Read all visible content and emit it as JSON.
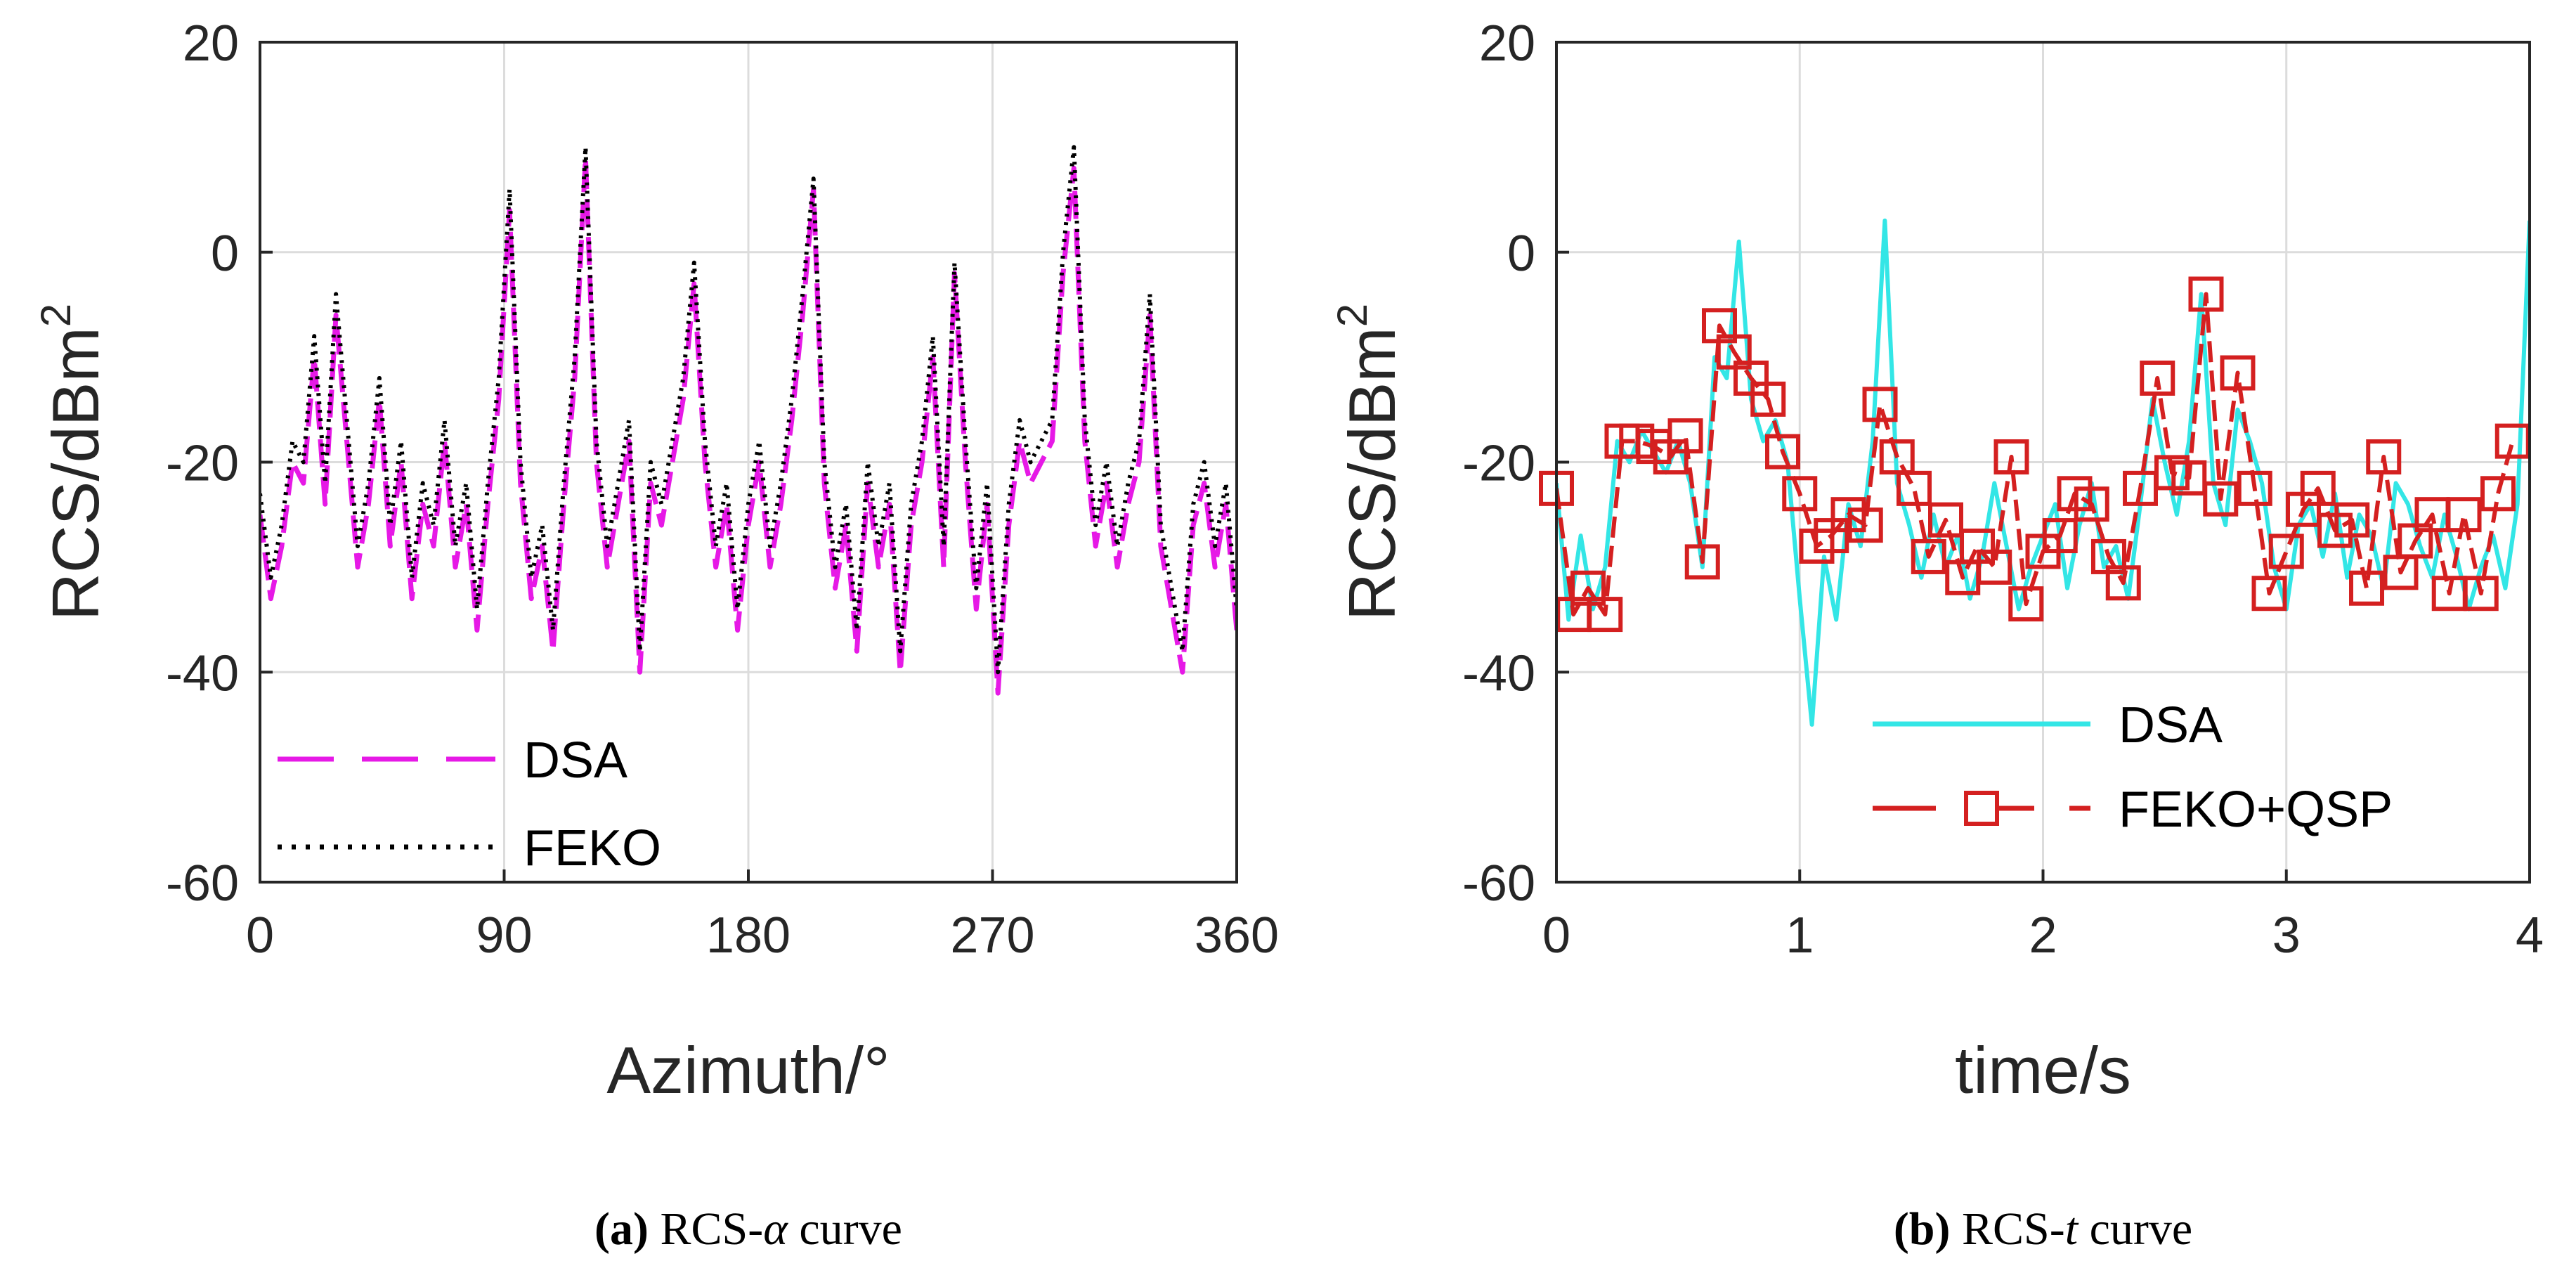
{
  "chart_data": [
    {
      "type": "line",
      "panel": "a",
      "ylabel": "RCS/dBm",
      "ylabel_superscript": "2",
      "xlabel": "Azimuth/°",
      "xlim": [
        0,
        360
      ],
      "ylim": [
        -60,
        20
      ],
      "xticks": [
        0,
        90,
        180,
        270,
        360
      ],
      "yticks": [
        -60,
        -40,
        -20,
        0,
        20
      ],
      "grid": true,
      "legend_position": "bottom-left",
      "caption_label": "(a)",
      "caption_text": " RCS-",
      "caption_symbol": "α",
      "caption_suffix": " curve",
      "series": [
        {
          "name": "DSA",
          "color": "#e619e6",
          "style": "dashed",
          "x": [
            0,
            4,
            8,
            12,
            16,
            20,
            24,
            28,
            32,
            36,
            40,
            44,
            48,
            52,
            56,
            60,
            64,
            68,
            72,
            76,
            80,
            84,
            88,
            92,
            96,
            100,
            104,
            108,
            112,
            116,
            120,
            124,
            128,
            132,
            136,
            140,
            144,
            148,
            152,
            156,
            160,
            164,
            168,
            172,
            176,
            180,
            184,
            188,
            192,
            196,
            200,
            204,
            208,
            212,
            216,
            220,
            224,
            228,
            232,
            236,
            240,
            244,
            248,
            252,
            256,
            260,
            264,
            268,
            272,
            276,
            280,
            284,
            288,
            292,
            296,
            300,
            304,
            308,
            312,
            316,
            320,
            324,
            328,
            332,
            336,
            340,
            344,
            348,
            352,
            356,
            360
          ],
          "y": [
            -25,
            -33,
            -28,
            -20,
            -22,
            -10,
            -24,
            -6,
            -18,
            -30,
            -24,
            -14,
            -28,
            -20,
            -33,
            -24,
            -28,
            -18,
            -30,
            -24,
            -36,
            -24,
            -14,
            4,
            -22,
            -33,
            -28,
            -38,
            -24,
            -12,
            9,
            -20,
            -30,
            -24,
            -18,
            -40,
            -22,
            -26,
            -20,
            -14,
            -3,
            -20,
            -30,
            -24,
            -36,
            -26,
            -20,
            -30,
            -24,
            -16,
            -6,
            6,
            -22,
            -32,
            -26,
            -38,
            -22,
            -30,
            -24,
            -40,
            -26,
            -20,
            -10,
            -30,
            -2,
            -20,
            -34,
            -24,
            -42,
            -26,
            -18,
            -22,
            -20,
            -18,
            -2,
            8,
            -18,
            -28,
            -22,
            -30,
            -24,
            -20,
            -6,
            -28,
            -34,
            -40,
            -26,
            -22,
            -30,
            -24,
            -36
          ]
        },
        {
          "name": "FEKO",
          "color": "#000000",
          "style": "dotted",
          "x": [
            0,
            4,
            8,
            12,
            16,
            20,
            24,
            28,
            32,
            36,
            40,
            44,
            48,
            52,
            56,
            60,
            64,
            68,
            72,
            76,
            80,
            84,
            88,
            92,
            96,
            100,
            104,
            108,
            112,
            116,
            120,
            124,
            128,
            132,
            136,
            140,
            144,
            148,
            152,
            156,
            160,
            164,
            168,
            172,
            176,
            180,
            184,
            188,
            192,
            196,
            200,
            204,
            208,
            212,
            216,
            220,
            224,
            228,
            232,
            236,
            240,
            244,
            248,
            252,
            256,
            260,
            264,
            268,
            272,
            276,
            280,
            284,
            288,
            292,
            296,
            300,
            304,
            308,
            312,
            316,
            320,
            324,
            328,
            332,
            336,
            340,
            344,
            348,
            352,
            356,
            360
          ],
          "y": [
            -23,
            -31,
            -26,
            -18,
            -20,
            -8,
            -22,
            -4,
            -16,
            -28,
            -22,
            -12,
            -26,
            -18,
            -31,
            -22,
            -26,
            -16,
            -28,
            -22,
            -34,
            -22,
            -12,
            6,
            -20,
            -31,
            -26,
            -36,
            -22,
            -10,
            10,
            -18,
            -28,
            -22,
            -16,
            -38,
            -20,
            -24,
            -18,
            -12,
            -1,
            -18,
            -28,
            -22,
            -34,
            -24,
            -18,
            -28,
            -22,
            -14,
            -4,
            7,
            -20,
            -30,
            -24,
            -36,
            -20,
            -28,
            -22,
            -38,
            -24,
            -18,
            -8,
            -28,
            -1,
            -18,
            -32,
            -22,
            -40,
            -24,
            -16,
            -20,
            -18,
            -16,
            0,
            10,
            -16,
            -26,
            -20,
            -28,
            -22,
            -18,
            -4,
            -26,
            -32,
            -38,
            -24,
            -20,
            -28,
            -22,
            -34
          ]
        }
      ]
    },
    {
      "type": "line",
      "panel": "b",
      "ylabel": "RCS/dBm",
      "ylabel_superscript": "2",
      "xlabel": "time/s",
      "xlim": [
        0,
        4
      ],
      "ylim": [
        -60,
        20
      ],
      "xticks": [
        0,
        1,
        2,
        3,
        4
      ],
      "yticks": [
        -60,
        -40,
        -20,
        0,
        20
      ],
      "grid": true,
      "legend_position": "bottom-right",
      "caption_label": "(b)",
      "caption_text": " RCS-",
      "caption_symbol": "t",
      "caption_suffix": " curve",
      "series": [
        {
          "name": "DSA",
          "color": "#33e6e6",
          "style": "solid",
          "x": [
            0,
            0.05,
            0.1,
            0.15,
            0.2,
            0.25,
            0.3,
            0.35,
            0.4,
            0.45,
            0.5,
            0.55,
            0.6,
            0.65,
            0.7,
            0.75,
            0.8,
            0.85,
            0.9,
            0.95,
            1.0,
            1.05,
            1.1,
            1.15,
            1.2,
            1.25,
            1.3,
            1.35,
            1.4,
            1.45,
            1.5,
            1.55,
            1.6,
            1.65,
            1.7,
            1.75,
            1.8,
            1.85,
            1.9,
            1.95,
            2.0,
            2.05,
            2.1,
            2.15,
            2.2,
            2.25,
            2.3,
            2.35,
            2.4,
            2.45,
            2.5,
            2.55,
            2.6,
            2.65,
            2.7,
            2.75,
            2.8,
            2.85,
            2.9,
            2.95,
            3.0,
            3.05,
            3.1,
            3.15,
            3.2,
            3.25,
            3.3,
            3.35,
            3.4,
            3.45,
            3.5,
            3.55,
            3.6,
            3.65,
            3.7,
            3.75,
            3.8,
            3.85,
            3.9,
            3.95,
            4.0
          ],
          "y": [
            -22,
            -35,
            -27,
            -34,
            -30,
            -18,
            -20,
            -17,
            -19,
            -21,
            -18,
            -22,
            -30,
            -10,
            -12,
            1,
            -14,
            -18,
            -16,
            -20,
            -33,
            -45,
            -29,
            -35,
            -24,
            -28,
            -18,
            3,
            -22,
            -26,
            -31,
            -25,
            -30,
            -27,
            -33,
            -29,
            -22,
            -28,
            -34,
            -30,
            -27,
            -24,
            -32,
            -26,
            -22,
            -30,
            -28,
            -33,
            -24,
            -14,
            -20,
            -25,
            -18,
            -4,
            -22,
            -26,
            -15,
            -18,
            -22,
            -30,
            -34,
            -26,
            -24,
            -29,
            -23,
            -31,
            -25,
            -27,
            -32,
            -22,
            -24,
            -28,
            -31,
            -25,
            -29,
            -34,
            -30,
            -27,
            -32,
            -24,
            3
          ]
        },
        {
          "name": "FEKO+QSP",
          "color": "#d42020",
          "style": "dashed-square",
          "x": [
            0,
            0.07,
            0.13,
            0.2,
            0.27,
            0.33,
            0.4,
            0.47,
            0.53,
            0.6,
            0.67,
            0.73,
            0.8,
            0.87,
            0.93,
            1.0,
            1.07,
            1.13,
            1.2,
            1.27,
            1.33,
            1.4,
            1.47,
            1.53,
            1.6,
            1.67,
            1.73,
            1.8,
            1.87,
            1.93,
            2.0,
            2.07,
            2.13,
            2.2,
            2.27,
            2.33,
            2.4,
            2.47,
            2.53,
            2.6,
            2.67,
            2.73,
            2.8,
            2.87,
            2.93,
            3.0,
            3.07,
            3.13,
            3.2,
            3.27,
            3.33,
            3.4,
            3.47,
            3.53,
            3.6,
            3.67,
            3.73,
            3.8,
            3.87,
            3.93
          ],
          "y": [
            -22.5,
            -34.5,
            -32,
            -34.5,
            -18,
            -18,
            -18.5,
            -19.5,
            -17.5,
            -29.5,
            -7,
            -9.5,
            -12,
            -14,
            -19,
            -23,
            -28,
            -27,
            -25,
            -26,
            -14.5,
            -19.5,
            -22.5,
            -29,
            -25.5,
            -31,
            -28,
            -30,
            -19.5,
            -33.5,
            -28.5,
            -27,
            -23,
            -24,
            -29,
            -31.5,
            -22.5,
            -12,
            -21,
            -21.5,
            -4,
            -23.5,
            -11.5,
            -22.5,
            -32.5,
            -28.5,
            -24.5,
            -22.5,
            -26.5,
            -25.5,
            -32,
            -19.5,
            -30.5,
            -27.5,
            -25,
            -32.5,
            -25,
            -32.5,
            -23,
            -18
          ]
        }
      ]
    }
  ]
}
